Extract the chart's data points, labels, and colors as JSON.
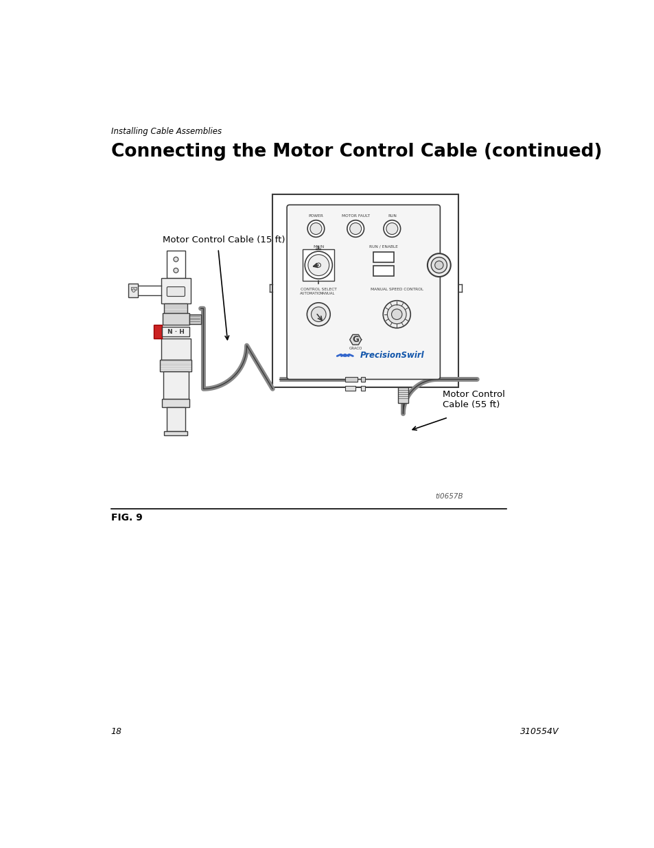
{
  "page_header": "Installing Cable Assemblies",
  "title": "Connecting the Motor Control Cable (continued)",
  "fig_label": "FIG. 9",
  "page_number": "18",
  "doc_number": "310554V",
  "label_15ft": "Motor Control Cable (15 ft)",
  "label_55ft": "Motor Control\nCable (55 ft)",
  "watermark": "ti0657B",
  "bg_color": "#ffffff",
  "line_color": "#000000",
  "dc": "#3a3a3a"
}
